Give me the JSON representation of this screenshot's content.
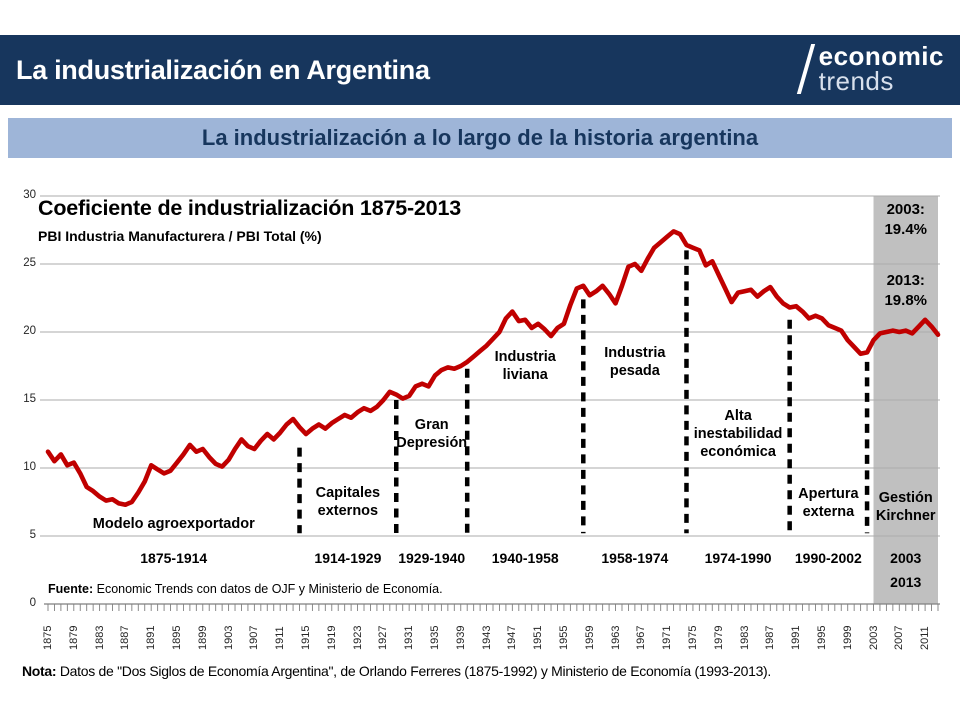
{
  "header": {
    "title": "La industrialización en Argentina",
    "logo_economic": "economic",
    "logo_trends": "trends"
  },
  "banner": {
    "text": "La industrialización a lo largo de la historia argentina"
  },
  "chart": {
    "title": "Coeficiente de industrialización 1875-2013",
    "subtitle": "PBI Industria Manufacturera / PBI Total (%)",
    "source_label": "Fuente:",
    "source_text": " Economic Trends con datos de OJF y Ministerio de Economía."
  },
  "note": {
    "label": "Nota:",
    "text": " Datos de \"Dos Siglos de Economía Argentina\", de Orlando Ferreres (1875-1992) y Ministerio de Economía (1993-2013)."
  },
  "chart_data": {
    "type": "line",
    "title": "Coeficiente de industrialización 1875-2013",
    "ylabel": "PBI Industria Manufacturera / PBI Total (%)",
    "ylim": [
      0,
      30
    ],
    "y_tick_labels": [
      0,
      5,
      10,
      15,
      20,
      25,
      30
    ],
    "y_gridline_values": [
      5,
      10,
      15,
      20,
      25,
      30
    ],
    "x_range": [
      1875,
      2013
    ],
    "x_minor_tick_step": 1,
    "x_tick_label_years": [
      1875,
      1879,
      1883,
      1887,
      1891,
      1895,
      1899,
      1903,
      1907,
      1911,
      1915,
      1919,
      1923,
      1927,
      1931,
      1935,
      1939,
      1943,
      1947,
      1951,
      1955,
      1959,
      1963,
      1967,
      1971,
      1975,
      1979,
      1983,
      1987,
      1991,
      1995,
      1999,
      2003,
      2007,
      2011
    ],
    "series": [
      {
        "name": "Coeficiente de industrialización (PBI Industria Manufacturera / PBI Total, %)",
        "color": "#C00000",
        "x_start": 1875,
        "values": [
          11.2,
          10.5,
          11.0,
          10.2,
          10.4,
          9.6,
          8.6,
          8.3,
          7.9,
          7.6,
          7.7,
          7.4,
          7.3,
          7.5,
          8.2,
          9.0,
          10.2,
          9.9,
          9.6,
          9.8,
          10.4,
          11.0,
          11.7,
          11.2,
          11.4,
          10.8,
          10.3,
          10.1,
          10.6,
          11.4,
          12.1,
          11.6,
          11.4,
          12.0,
          12.5,
          12.1,
          12.6,
          13.2,
          13.6,
          13.0,
          12.5,
          12.9,
          13.2,
          12.9,
          13.3,
          13.6,
          13.9,
          13.7,
          14.1,
          14.4,
          14.2,
          14.5,
          15.0,
          15.6,
          15.4,
          15.1,
          15.3,
          16.0,
          16.2,
          16.0,
          16.8,
          17.2,
          17.4,
          17.3,
          17.5,
          17.8,
          18.2,
          18.6,
          19.0,
          19.5,
          20.0,
          21.0,
          21.5,
          20.8,
          20.9,
          20.3,
          20.6,
          20.2,
          19.7,
          20.3,
          20.6,
          22.0,
          23.2,
          23.4,
          22.7,
          23.0,
          23.4,
          22.8,
          22.1,
          23.4,
          24.8,
          25.0,
          24.5,
          25.4,
          26.2,
          26.6,
          27.0,
          27.4,
          27.2,
          26.4,
          26.2,
          26.0,
          24.9,
          25.2,
          24.2,
          23.2,
          22.2,
          22.9,
          23.0,
          23.1,
          22.6,
          23.0,
          23.3,
          22.6,
          22.1,
          21.8,
          21.9,
          21.5,
          21.0,
          21.2,
          21.0,
          20.5,
          20.3,
          20.1,
          19.4,
          18.9,
          18.4,
          18.5,
          19.4,
          19.9,
          20.0,
          20.1,
          20.0,
          20.1,
          19.9,
          20.4,
          20.9,
          20.4,
          19.8
        ]
      }
    ],
    "highlight_band": {
      "from": 2003,
      "to": 2013,
      "color": "#C0C0C0"
    },
    "annotations": [
      {
        "lines": [
          "2003:",
          "19.4%"
        ],
        "year": 2008,
        "value": 28.2
      },
      {
        "lines": [
          "2013:",
          "19.8%"
        ],
        "year": 2008,
        "value": 23.0
      }
    ],
    "period_boundaries": [
      {
        "year": 1914,
        "top_value": 11.5,
        "bottom_value": 5.2
      },
      {
        "year": 1929,
        "top_value": 15.0,
        "bottom_value": 5.2
      },
      {
        "year": 1940,
        "top_value": 17.3,
        "bottom_value": 5.2
      },
      {
        "year": 1958,
        "top_value": 22.4,
        "bottom_value": 5.2
      },
      {
        "year": 1974,
        "top_value": 26.0,
        "bottom_value": 5.2
      },
      {
        "year": 1990,
        "top_value": 20.9,
        "bottom_value": 5.2
      },
      {
        "year": 2002,
        "top_value": 17.8,
        "bottom_value": 5.2
      }
    ],
    "periods": [
      {
        "lines": [
          "1875-1914"
        ],
        "from": 1875,
        "to": 1914
      },
      {
        "lines": [
          "1914-1929"
        ],
        "from": 1914,
        "to": 1929
      },
      {
        "lines": [
          "1929-1940"
        ],
        "from": 1929,
        "to": 1940
      },
      {
        "lines": [
          "1940-1958"
        ],
        "from": 1940,
        "to": 1958
      },
      {
        "lines": [
          "1958-1974"
        ],
        "from": 1958,
        "to": 1974
      },
      {
        "lines": [
          "1974-1990"
        ],
        "from": 1974,
        "to": 1990
      },
      {
        "lines": [
          "1990-2002"
        ],
        "from": 1990,
        "to": 2002
      },
      {
        "lines": [
          "2003",
          "2013"
        ],
        "from": 2003,
        "to": 2013
      }
    ],
    "phase_labels": [
      {
        "lines": [
          "Modelo agroexportador"
        ],
        "year": 1894.5,
        "value": 5.9
      },
      {
        "lines": [
          "Capitales",
          "externos"
        ],
        "year": 1921.5,
        "value": 7.5
      },
      {
        "lines": [
          "Gran",
          "Depresión"
        ],
        "year": 1934.5,
        "value": 12.5
      },
      {
        "lines": [
          "Industria",
          "liviana"
        ],
        "year": 1949.0,
        "value": 17.5
      },
      {
        "lines": [
          "Industria",
          "pesada"
        ],
        "year": 1966.0,
        "value": 17.8
      },
      {
        "lines": [
          "Alta",
          "inestabilidad",
          "económica"
        ],
        "year": 1982.0,
        "value": 12.5
      },
      {
        "lines": [
          "Apertura",
          "externa"
        ],
        "year": 1996.0,
        "value": 7.4
      },
      {
        "lines": [
          "Gestión",
          "Kirchner"
        ],
        "year": 2008.0,
        "value": 7.1
      }
    ],
    "grid": true,
    "legend": "none",
    "gridline_color": "#ABABAB",
    "axis_color": "#7F7F7F",
    "boundary_line_color": "#000000"
  }
}
